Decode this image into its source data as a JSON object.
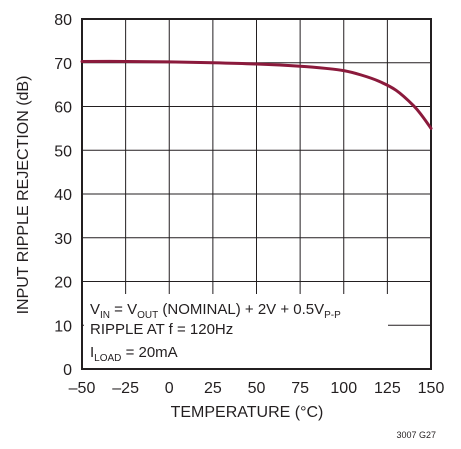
{
  "chart_data": {
    "type": "line",
    "xlabel": "TEMPERATURE (°C)",
    "ylabel": "INPUT RIPPLE REJECTION (dB)",
    "xlim": [
      -50,
      150
    ],
    "ylim": [
      0,
      80
    ],
    "x_ticks": [
      "–50",
      "–25",
      "0",
      "25",
      "50",
      "75",
      "100",
      "125",
      "150"
    ],
    "y_ticks": [
      "0",
      "10",
      "20",
      "30",
      "40",
      "50",
      "60",
      "70",
      "80"
    ],
    "grid": true,
    "series": [
      {
        "color": "#8b1a3c",
        "points": [
          [
            -50,
            70.3
          ],
          [
            -25,
            70.3
          ],
          [
            0,
            70.2
          ],
          [
            25,
            70.0
          ],
          [
            50,
            69.7
          ],
          [
            75,
            69.2
          ],
          [
            90,
            68.7
          ],
          [
            100,
            68.2
          ],
          [
            110,
            67.2
          ],
          [
            120,
            65.8
          ],
          [
            130,
            63.7
          ],
          [
            140,
            60.2
          ],
          [
            145,
            57.8
          ],
          [
            150,
            55.0
          ]
        ]
      }
    ],
    "annotation": {
      "line1": {
        "a": "V",
        "a_sub": "IN",
        "b": " = V",
        "b_sub": "OUT",
        "c": " (NOMINAL) + 2V + 0.5V",
        "c_sub": "P-P"
      },
      "line2": "RIPPLE AT f = 120Hz",
      "line3": {
        "a": "I",
        "a_sub": "LOAD",
        "b": " = 20mA"
      }
    },
    "figure_id": "3007 G27"
  }
}
